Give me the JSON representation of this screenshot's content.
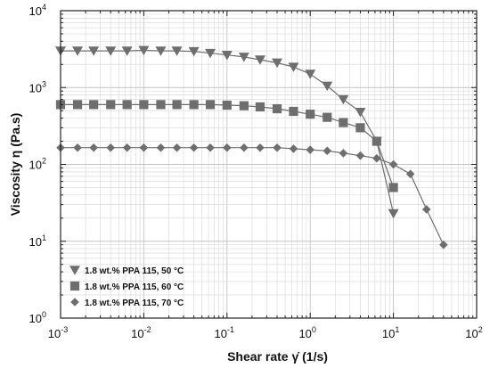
{
  "chart_data": {
    "type": "line",
    "x_scale": "log",
    "y_scale": "log",
    "xlim": [
      0.001,
      100
    ],
    "ylim": [
      1,
      10000
    ],
    "grid": true,
    "legend_placement": "bottom-left",
    "xlabel": "Shear rate γ̇  (1/s)",
    "ylabel": "Viscosity  η  (Pa.s)",
    "x_ticks": [
      {
        "value": 0.001,
        "base": "10",
        "exp": "-3"
      },
      {
        "value": 0.01,
        "base": "10",
        "exp": "-2"
      },
      {
        "value": 0.1,
        "base": "10",
        "exp": "-1"
      },
      {
        "value": 1,
        "base": "10",
        "exp": "0"
      },
      {
        "value": 10,
        "base": "10",
        "exp": "1"
      },
      {
        "value": 100,
        "base": "10",
        "exp": "2"
      }
    ],
    "y_ticks": [
      {
        "value": 1,
        "base": "10",
        "exp": "0"
      },
      {
        "value": 10,
        "base": "10",
        "exp": "1"
      },
      {
        "value": 100,
        "base": "10",
        "exp": "2"
      },
      {
        "value": 1000,
        "base": "10",
        "exp": "3"
      },
      {
        "value": 10000,
        "base": "10",
        "exp": "4"
      }
    ],
    "series": [
      {
        "name": "1.8 wt.% PPA 115, 50 °C",
        "marker": "triangle-down",
        "color": "#6e6e6e",
        "x": [
          0.001,
          0.0016,
          0.0025,
          0.004,
          0.0063,
          0.01,
          0.016,
          0.025,
          0.04,
          0.063,
          0.1,
          0.16,
          0.25,
          0.4,
          0.63,
          1.0,
          1.6,
          2.5,
          4.0,
          6.3,
          10
        ],
        "y": [
          3000,
          3000,
          3000,
          3000,
          3000,
          3050,
          3000,
          3000,
          2950,
          2800,
          2650,
          2500,
          2300,
          2100,
          1850,
          1500,
          1050,
          700,
          480,
          200,
          23
        ]
      },
      {
        "name": "1.8 wt.% PPA 115, 60 °C",
        "marker": "square",
        "color": "#6e6e6e",
        "x": [
          0.001,
          0.0016,
          0.0025,
          0.004,
          0.0063,
          0.01,
          0.016,
          0.025,
          0.04,
          0.063,
          0.1,
          0.16,
          0.25,
          0.4,
          0.63,
          1.0,
          1.6,
          2.5,
          4.0,
          6.3,
          10
        ],
        "y": [
          600,
          600,
          600,
          600,
          600,
          600,
          600,
          600,
          600,
          600,
          590,
          580,
          560,
          530,
          490,
          450,
          410,
          350,
          300,
          200,
          50
        ]
      },
      {
        "name": "1.8 wt.% PPA 115, 70 °C",
        "marker": "diamond",
        "color": "#6e6e6e",
        "x": [
          0.001,
          0.0016,
          0.0025,
          0.004,
          0.0063,
          0.01,
          0.016,
          0.025,
          0.04,
          0.063,
          0.1,
          0.16,
          0.25,
          0.4,
          0.63,
          1.0,
          1.6,
          2.5,
          4.0,
          6.3,
          10,
          16,
          25,
          40
        ],
        "y": [
          165,
          165,
          165,
          165,
          165,
          165,
          165,
          165,
          165,
          165,
          165,
          165,
          165,
          165,
          160,
          155,
          150,
          140,
          130,
          120,
          100,
          75,
          26,
          9
        ]
      }
    ]
  }
}
